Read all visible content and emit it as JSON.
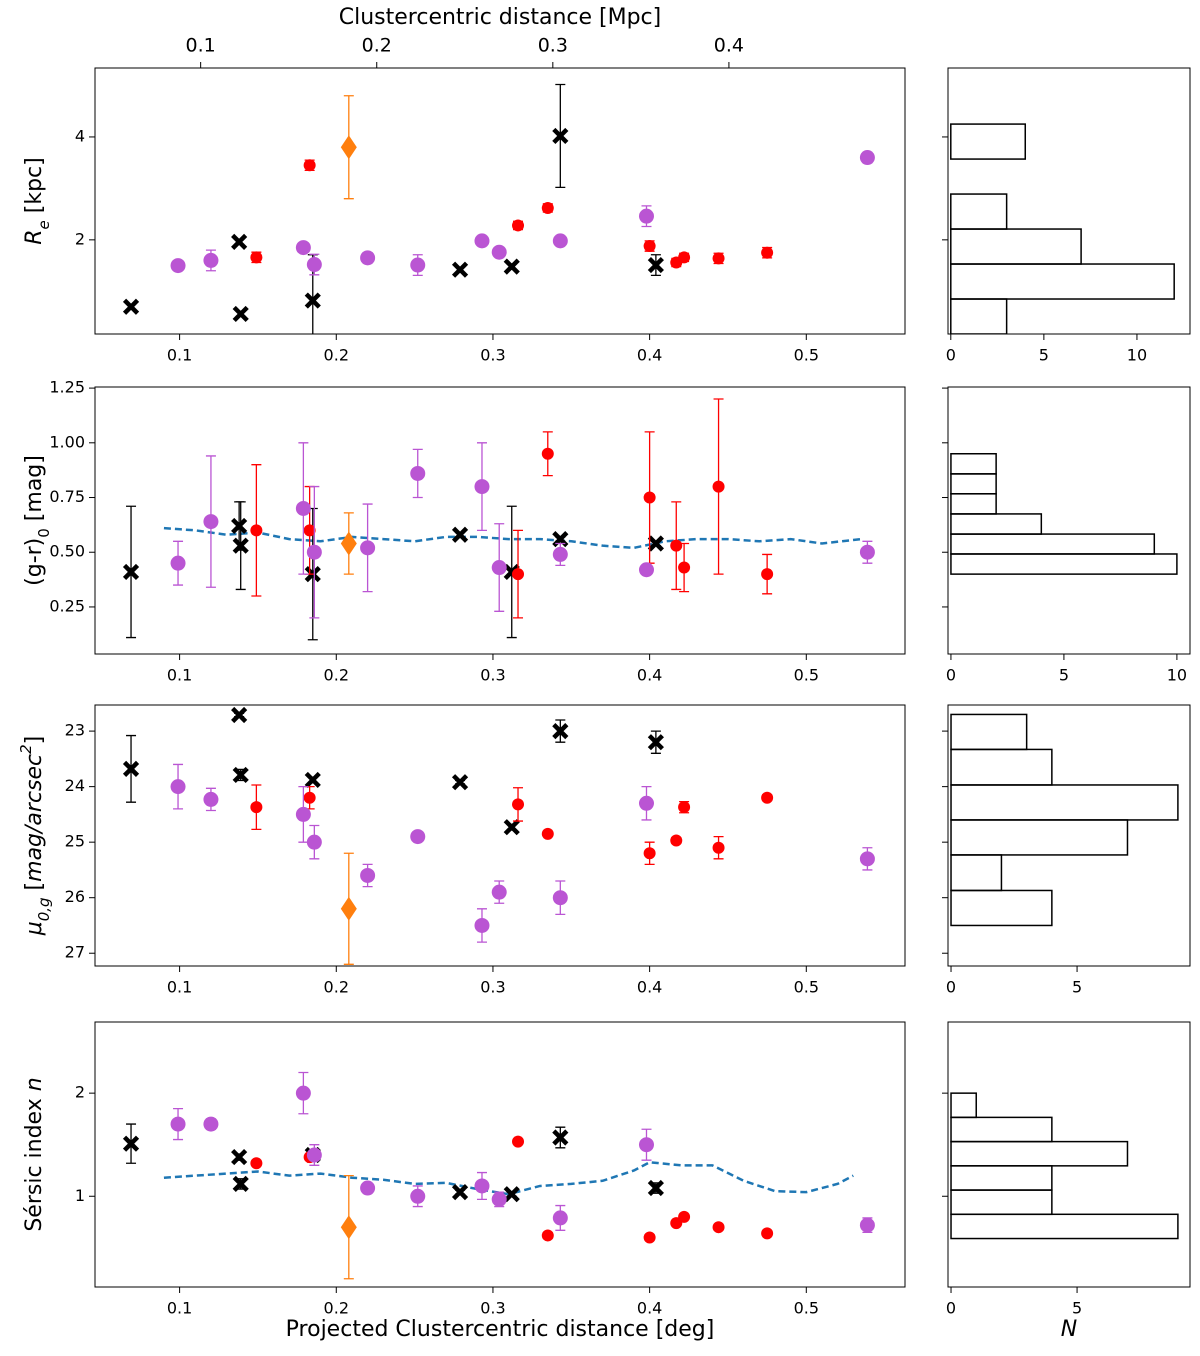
{
  "chart_data": [
    {
      "type": "scatter",
      "ylabel": [
        {
          "text": "R",
          "italic": true
        },
        {
          "text": "e",
          "italic": true,
          "shift": "sub"
        },
        {
          "text": " [kpc]"
        }
      ],
      "x2label": "Clustercentric distance [Mpc]",
      "x2lim": [
        0.04,
        0.5
      ],
      "x2ticks": [
        0.1,
        0.2,
        0.3,
        0.4
      ],
      "xlim": [
        0.046,
        0.563
      ],
      "xticks": [
        0.1,
        0.2,
        0.3,
        0.4,
        0.5
      ],
      "ylim": [
        0.17,
        5.34
      ],
      "yticks": [
        2,
        4
      ],
      "series": [
        {
          "color": "#000000",
          "marker": "x",
          "x": [
            0.069,
            0.138,
            0.139,
            0.185,
            0.279,
            0.312,
            0.343,
            0.404
          ],
          "values": [
            0.7,
            1.96,
            0.56,
            0.82,
            1.42,
            1.48,
            4.02,
            1.51
          ],
          "errors": [
            0.05,
            0.05,
            0.05,
            0.89,
            0.05,
            0.05,
            1.0,
            0.2
          ]
        },
        {
          "color": "#ff0000",
          "marker": "o",
          "markersize": 12,
          "x": [
            0.149,
            0.183,
            0.316,
            0.335,
            0.4,
            0.417,
            0.422,
            0.444,
            0.475
          ],
          "values": [
            1.66,
            3.45,
            2.28,
            2.62,
            1.88,
            1.56,
            1.66,
            1.64,
            1.75
          ],
          "errors": [
            0.1,
            0.1,
            0.08,
            0.08,
            0.1,
            0.08,
            0.08,
            0.1,
            0.1
          ]
        },
        {
          "color": "#ba55d3",
          "marker": "o",
          "markersize": 15,
          "x": [
            0.099,
            0.12,
            0.179,
            0.186,
            0.22,
            0.252,
            0.293,
            0.304,
            0.343,
            0.398,
            0.539
          ],
          "values": [
            1.5,
            1.6,
            1.85,
            1.52,
            1.65,
            1.51,
            1.98,
            1.76,
            1.98,
            2.46,
            3.6
          ],
          "errors": [
            0.08,
            0.2,
            0.08,
            0.2,
            0.1,
            0.2,
            0.08,
            0.08,
            0.08,
            0.2,
            0.1
          ]
        },
        {
          "color": "#ff7f0e",
          "marker": "D",
          "x": [
            0.208
          ],
          "values": [
            3.8
          ],
          "errors": [
            1.0
          ]
        }
      ]
    },
    {
      "type": "scatter",
      "ylabel": [
        {
          "text": "(g-r)"
        },
        {
          "text": "0",
          "shift": "sub"
        },
        {
          "text": " [mag]"
        }
      ],
      "xlim": [
        0.046,
        0.563
      ],
      "xticks": [
        0.1,
        0.2,
        0.3,
        0.4,
        0.5
      ],
      "ylim": [
        0.035,
        1.255
      ],
      "yticks": [
        0.25,
        {
          "value": 0.5,
          "label": "0.50"
        },
        {
          "value": 0.75,
          "label": "0.75"
        },
        {
          "value": 1.0,
          "label": "1.00"
        },
        1.25
      ],
      "series": [
        {
          "color": "#1f77b4",
          "marker": "none",
          "linestyle": "dashed",
          "x": [
            0.09,
            0.11,
            0.13,
            0.15,
            0.17,
            0.19,
            0.21,
            0.23,
            0.25,
            0.27,
            0.29,
            0.31,
            0.33,
            0.35,
            0.37,
            0.39,
            0.41,
            0.43,
            0.45,
            0.47,
            0.49,
            0.51,
            0.535
          ],
          "values": [
            0.61,
            0.6,
            0.58,
            0.59,
            0.56,
            0.55,
            0.57,
            0.56,
            0.55,
            0.57,
            0.57,
            0.56,
            0.56,
            0.55,
            0.53,
            0.52,
            0.55,
            0.56,
            0.56,
            0.55,
            0.56,
            0.54,
            0.56
          ]
        },
        {
          "color": "#000000",
          "marker": "x",
          "x": [
            0.069,
            0.138,
            0.139,
            0.185,
            0.279,
            0.312,
            0.343,
            0.404
          ],
          "values": [
            0.41,
            0.62,
            0.53,
            0.4,
            0.58,
            0.41,
            0.56,
            0.54
          ],
          "errors": [
            0.3,
            0.11,
            0.2,
            0.3,
            0.01,
            0.3,
            0.01,
            0.01
          ]
        },
        {
          "color": "#ff0000",
          "marker": "o",
          "markersize": 12,
          "x": [
            0.149,
            0.183,
            0.316,
            0.335,
            0.4,
            0.417,
            0.422,
            0.444,
            0.475
          ],
          "values": [
            0.6,
            0.6,
            0.4,
            0.95,
            0.75,
            0.53,
            0.43,
            0.8,
            0.4
          ],
          "errors": [
            0.3,
            0.2,
            0.2,
            0.1,
            0.3,
            0.2,
            0.11,
            0.4,
            0.09
          ]
        },
        {
          "color": "#ba55d3",
          "marker": "o",
          "markersize": 15,
          "x": [
            0.099,
            0.12,
            0.179,
            0.186,
            0.22,
            0.252,
            0.293,
            0.304,
            0.343,
            0.398,
            0.539
          ],
          "values": [
            0.45,
            0.64,
            0.7,
            0.5,
            0.52,
            0.86,
            0.8,
            0.43,
            0.49,
            0.42,
            0.5
          ],
          "errors": [
            0.1,
            0.3,
            0.3,
            0.3,
            0.2,
            0.11,
            0.2,
            0.2,
            0.05,
            0.02,
            0.05
          ]
        },
        {
          "color": "#ff7f0e",
          "marker": "D",
          "x": [
            0.208
          ],
          "values": [
            0.54
          ],
          "errors": [
            0.14
          ]
        }
      ]
    },
    {
      "type": "scatter",
      "ylabel": [
        {
          "text": "μ",
          "italic": true
        },
        {
          "text": "0,g",
          "italic": true,
          "shift": "sub"
        },
        {
          "text": " ["
        },
        {
          "text": "mag/arcsec",
          "italic": true
        },
        {
          "text": "2",
          "italic": true,
          "shift": "super"
        },
        {
          "text": "]"
        }
      ],
      "xlim": [
        0.046,
        0.563
      ],
      "xticks": [
        0.1,
        0.2,
        0.3,
        0.4,
        0.5
      ],
      "ylim": [
        22.53,
        27.23
      ],
      "y_inverted": true,
      "yticks": [
        23,
        24,
        25,
        26,
        27
      ],
      "series": [
        {
          "color": "#000000",
          "marker": "x",
          "x": [
            0.069,
            0.138,
            0.139,
            0.185,
            0.279,
            0.312,
            0.343,
            0.404
          ],
          "values": [
            23.68,
            22.71,
            23.79,
            23.88,
            23.92,
            24.73,
            23.0,
            23.2
          ],
          "errors": [
            0.6,
            0.03,
            0.1,
            0.05,
            0.03,
            0.05,
            0.2,
            0.2
          ]
        },
        {
          "color": "#ff0000",
          "marker": "o",
          "markersize": 12,
          "x": [
            0.149,
            0.183,
            0.316,
            0.335,
            0.4,
            0.417,
            0.422,
            0.444,
            0.475
          ],
          "values": [
            24.37,
            24.2,
            24.32,
            24.85,
            25.2,
            24.97,
            24.37,
            25.1,
            24.2
          ],
          "errors": [
            0.4,
            0.2,
            0.3,
            0.02,
            0.2,
            0.05,
            0.1,
            0.2,
            0.05
          ]
        },
        {
          "color": "#ba55d3",
          "marker": "o",
          "markersize": 15,
          "x": [
            0.099,
            0.12,
            0.179,
            0.186,
            0.22,
            0.252,
            0.293,
            0.304,
            0.343,
            0.398,
            0.539
          ],
          "values": [
            24.0,
            24.23,
            24.5,
            25.0,
            25.6,
            24.9,
            26.5,
            25.9,
            26.0,
            24.3,
            25.3
          ],
          "errors": [
            0.4,
            0.2,
            0.5,
            0.3,
            0.2,
            0.05,
            0.3,
            0.2,
            0.3,
            0.3,
            0.2
          ]
        },
        {
          "color": "#ff7f0e",
          "marker": "D",
          "x": [
            0.208
          ],
          "values": [
            26.2
          ],
          "errors": [
            1.0
          ]
        }
      ]
    },
    {
      "type": "scatter",
      "ylabel": [
        {
          "text": "Sérsic index "
        },
        {
          "text": "n",
          "italic": true
        }
      ],
      "xlabel": "Projected Clustercentric distance [deg]",
      "xlim": [
        0.046,
        0.563
      ],
      "xticks": [
        0.1,
        0.2,
        0.3,
        0.4,
        0.5
      ],
      "ylim": [
        0.12,
        2.69
      ],
      "yticks": [
        1,
        2
      ],
      "series": [
        {
          "color": "#1f77b4",
          "marker": "none",
          "linestyle": "dashed",
          "x": [
            0.09,
            0.11,
            0.13,
            0.15,
            0.17,
            0.19,
            0.21,
            0.23,
            0.25,
            0.27,
            0.29,
            0.31,
            0.33,
            0.35,
            0.37,
            0.39,
            0.4,
            0.42,
            0.44,
            0.46,
            0.48,
            0.5,
            0.52,
            0.53
          ],
          "values": [
            1.18,
            1.2,
            1.22,
            1.24,
            1.2,
            1.22,
            1.18,
            1.16,
            1.12,
            1.13,
            1.07,
            1.02,
            1.1,
            1.12,
            1.15,
            1.25,
            1.33,
            1.3,
            1.3,
            1.15,
            1.05,
            1.04,
            1.12,
            1.2
          ]
        },
        {
          "color": "#000000",
          "marker": "x",
          "x": [
            0.069,
            0.138,
            0.139,
            0.185,
            0.279,
            0.312,
            0.343,
            0.404
          ],
          "values": [
            1.51,
            1.38,
            1.12,
            1.4,
            1.04,
            1.02,
            1.57,
            1.08
          ],
          "errors": [
            0.19,
            0.03,
            0.05,
            0.05,
            0.02,
            0.02,
            0.1,
            0.05
          ]
        },
        {
          "color": "#ff0000",
          "marker": "o",
          "markersize": 12,
          "x": [
            0.149,
            0.183,
            0.316,
            0.335,
            0.4,
            0.417,
            0.422,
            0.444,
            0.475
          ],
          "values": [
            1.32,
            1.38,
            1.53,
            0.62,
            0.6,
            0.74,
            0.8,
            0.7,
            0.64
          ],
          "errors": [
            0.02,
            0.02,
            0.02,
            0.02,
            0.02,
            0.02,
            0.02,
            0.02,
            0.02
          ]
        },
        {
          "color": "#ba55d3",
          "marker": "o",
          "markersize": 15,
          "x": [
            0.099,
            0.12,
            0.179,
            0.186,
            0.22,
            0.252,
            0.293,
            0.304,
            0.343,
            0.398,
            0.539
          ],
          "values": [
            1.7,
            1.7,
            2.0,
            1.4,
            1.08,
            1.0,
            1.1,
            0.97,
            0.79,
            1.5,
            0.72
          ],
          "errors": [
            0.15,
            0.05,
            0.2,
            0.1,
            0.03,
            0.1,
            0.13,
            0.07,
            0.12,
            0.15,
            0.07
          ]
        },
        {
          "color": "#ff7f0e",
          "marker": "D",
          "x": [
            0.208
          ],
          "values": [
            0.7
          ],
          "errors": [
            0.5
          ]
        }
      ]
    },
    {
      "type": "histogram",
      "orientation": "horizontal",
      "color": "#000000",
      "bins": [
        0.17,
        0.85,
        1.53,
        2.21,
        2.89,
        3.57,
        4.25
      ],
      "counts": [
        3,
        12,
        7,
        3,
        0,
        4
      ],
      "xlim": [
        -0.15,
        12.85
      ],
      "xticks": [
        0,
        5,
        10
      ],
      "ylim": [
        0.17,
        5.34
      ],
      "yticks": [
        2,
        4
      ]
    },
    {
      "type": "histogram",
      "orientation": "horizontal",
      "color": "#000000",
      "bins": [
        0.4,
        0.492,
        0.583,
        0.675,
        0.767,
        0.858,
        0.95
      ],
      "counts": [
        10,
        9,
        4,
        2,
        2,
        2
      ],
      "xlim": [
        -0.13,
        10.58
      ],
      "xticks": [
        0,
        5,
        10
      ],
      "ylim": [
        0.035,
        1.255
      ],
      "yticks": [
        0.25,
        0.5,
        0.75,
        1.0,
        1.25
      ]
    },
    {
      "type": "histogram",
      "orientation": "horizontal",
      "color": "#000000",
      "bins": [
        22.7,
        23.33,
        23.97,
        24.6,
        25.23,
        25.87,
        26.5
      ],
      "counts": [
        3,
        4,
        9,
        7,
        2,
        4
      ],
      "xlim": [
        -0.12,
        9.48
      ],
      "xticks": [
        0,
        5
      ],
      "ylim": [
        22.53,
        27.23
      ],
      "y_inverted": true,
      "yticks": [
        23,
        24,
        25,
        26,
        27
      ]
    },
    {
      "type": "histogram",
      "orientation": "horizontal",
      "color": "#000000",
      "xlabel": "N",
      "bins": [
        0.59,
        0.825,
        1.06,
        1.295,
        1.53,
        1.765,
        2.0
      ],
      "counts": [
        9,
        4,
        4,
        7,
        4,
        1
      ],
      "xlim": [
        -0.12,
        9.48
      ],
      "xticks": [
        0,
        5
      ],
      "ylim": [
        0.12,
        2.69
      ],
      "yticks": [
        1,
        2
      ]
    }
  ]
}
